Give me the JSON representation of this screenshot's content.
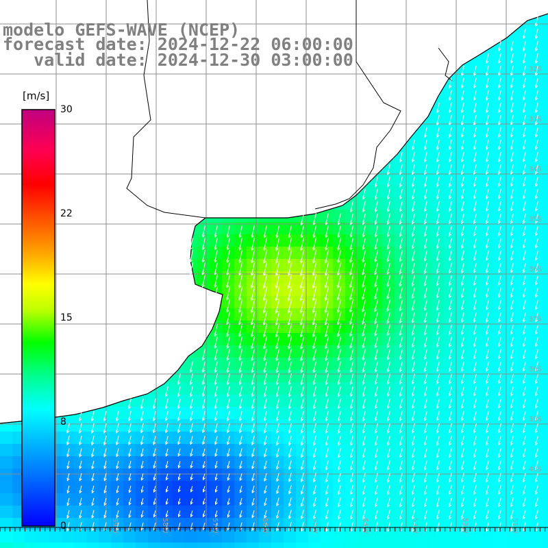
{
  "title": {
    "line1": "modelo GEFS-WAVE (NCEP)",
    "line2": "forecast date: 2024-12-22 06:00:00",
    "line3": "   valid date: 2024-12-30 03:00:00"
  },
  "colorbar": {
    "unit": "[m/s]",
    "ticks": [
      "30",
      "22",
      "15",
      "8",
      "0"
    ],
    "tick_values": [
      30,
      22,
      15,
      8,
      0
    ],
    "range": [
      0,
      30
    ],
    "colors": [
      "#0000ff",
      "#0080ff",
      "#00e0ff",
      "#00ffe0",
      "#00ff40",
      "#40f000",
      "#c0ff00",
      "#ffff00",
      "#ffc000",
      "#ff8000",
      "#ff2000",
      "#ff0020",
      "#e00060",
      "#c00080"
    ]
  },
  "map": {
    "variable": "wind speed",
    "units": "m/s",
    "lat_labels": [
      "32S",
      "33S",
      "34S",
      "35S",
      "36S",
      "37S",
      "38S",
      "39S",
      "40S"
    ],
    "lon_labels": [
      "59W",
      "58W",
      "57W",
      "56W",
      "55W",
      "54W",
      "53W",
      "52W",
      "51W"
    ],
    "colors": {
      "land": "#ffffff",
      "coastline": "#000000",
      "grid": "#8c8c8c",
      "arrows": "#ffffff",
      "label": "#a0a0a0"
    },
    "wind_direction": "from north-east (arrows point south-west)"
  }
}
